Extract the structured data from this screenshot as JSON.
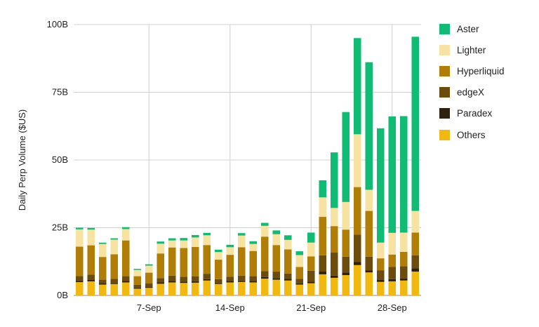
{
  "chart_data": {
    "type": "bar",
    "stacked": true,
    "title": "",
    "xlabel": "",
    "ylabel": "Daily Perp Volume ($US)",
    "ylim": [
      0,
      100
    ],
    "y_ticks": [
      "0B",
      "25B",
      "50B",
      "75B",
      "100B"
    ],
    "x_tick_labels": [
      "7-Sep",
      "14-Sep",
      "21-Sep",
      "28-Sep"
    ],
    "grid": true,
    "legend_position": "right",
    "categories": [
      "1-Sep",
      "2-Sep",
      "3-Sep",
      "4-Sep",
      "5-Sep",
      "6-Sep",
      "7-Sep",
      "8-Sep",
      "9-Sep",
      "10-Sep",
      "11-Sep",
      "12-Sep",
      "13-Sep",
      "14-Sep",
      "15-Sep",
      "16-Sep",
      "17-Sep",
      "18-Sep",
      "19-Sep",
      "20-Sep",
      "21-Sep",
      "22-Sep",
      "23-Sep",
      "24-Sep",
      "25-Sep",
      "26-Sep",
      "27-Sep",
      "28-Sep",
      "29-Sep",
      "30-Sep"
    ],
    "series": [
      {
        "name": "Others",
        "color": "#f1b90f",
        "values": [
          4.9,
          5.2,
          4.0,
          4.2,
          4.8,
          2.5,
          2.8,
          4.3,
          4.8,
          4.6,
          4.7,
          5.5,
          4.2,
          4.8,
          5.0,
          4.8,
          6.2,
          5.8,
          5.5,
          4.0,
          4.5,
          7.8,
          6.5,
          7.5,
          11.2,
          8.5,
          5.0,
          5.2,
          5.5,
          8.8
        ]
      },
      {
        "name": "Paradex",
        "color": "#2d2210",
        "values": [
          0.5,
          0.5,
          0.4,
          0.4,
          0.5,
          0.4,
          0.4,
          0.5,
          0.5,
          0.5,
          0.5,
          0.5,
          0.4,
          0.5,
          0.5,
          0.5,
          0.6,
          0.6,
          0.6,
          0.5,
          0.6,
          1.0,
          0.8,
          1.0,
          1.2,
          0.8,
          0.8,
          0.8,
          0.8,
          1.2
        ]
      },
      {
        "name": "edgeX",
        "color": "#6b4c0d",
        "values": [
          1.8,
          2.0,
          1.4,
          1.5,
          1.8,
          1.0,
          1.2,
          1.6,
          2.0,
          1.8,
          1.8,
          2.0,
          1.4,
          1.6,
          1.8,
          1.8,
          2.2,
          2.4,
          2.0,
          1.6,
          4.0,
          6.0,
          8.5,
          5.8,
          10.0,
          5.0,
          3.5,
          4.5,
          4.5,
          4.8
        ]
      },
      {
        "name": "Hyperliquid",
        "color": "#b07d07",
        "values": [
          10.8,
          10.8,
          8.4,
          9.1,
          13.2,
          3.2,
          4.0,
          9.1,
          10.4,
          10.6,
          10.9,
          10.6,
          7.2,
          8.1,
          10.5,
          9.3,
          12.7,
          9.8,
          8.9,
          4.4,
          5.3,
          14.2,
          9.8,
          10.0,
          17.6,
          16.9,
          4.4,
          4.6,
          5.3,
          8.4
        ]
      },
      {
        "name": "Lighter",
        "color": "#f7e3a1",
        "values": [
          6.4,
          5.8,
          4.8,
          5.4,
          4.2,
          2.3,
          2.6,
          3.6,
          2.6,
          2.8,
          3.5,
          3.6,
          2.8,
          2.8,
          4.3,
          2.6,
          4.0,
          4.0,
          3.5,
          4.4,
          5.1,
          7.2,
          6.7,
          10.2,
          19.5,
          7.8,
          5.8,
          8.0,
          7.1,
          8.0
        ]
      },
      {
        "name": "Aster",
        "color": "#10bc73",
        "values": [
          0.6,
          0.6,
          0.5,
          0.5,
          0.7,
          0.4,
          0.5,
          0.8,
          0.8,
          0.9,
          0.9,
          0.9,
          0.9,
          0.9,
          0.9,
          1.0,
          1.1,
          1.4,
          1.7,
          1.4,
          3.7,
          6.3,
          20.5,
          33.2,
          35.5,
          47.1,
          42.2,
          43.0,
          43.0,
          64.3
        ]
      }
    ]
  }
}
